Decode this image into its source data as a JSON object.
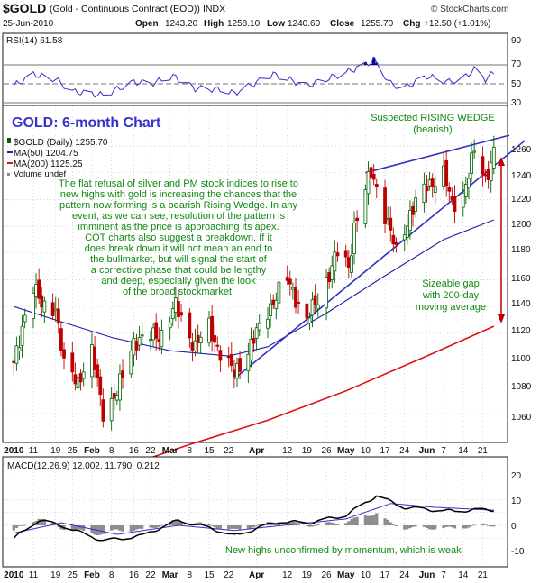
{
  "header": {
    "symbol": "$GOLD",
    "description": "(Gold - Continuous Contract (EOD))",
    "exchange": "INDX",
    "watermark": "© StockCharts.com",
    "date": "25-Jun-2010",
    "quote": {
      "open_label": "Open",
      "open": "1243.20",
      "high_label": "High",
      "high": "1258.10",
      "low_label": "Low",
      "low": "1240.60",
      "close_label": "Close",
      "close": "1255.70",
      "chg_label": "Chg",
      "chg": "+12.50 (+1.01%)"
    }
  },
  "rsi": {
    "label": "RSI(14) 61.58",
    "ticks": [
      "90",
      "70",
      "50",
      "30"
    ]
  },
  "price": {
    "big_title": "GOLD: 6-month Chart",
    "legend": {
      "series_label": "$GOLD (Daily) 1255.70",
      "ma50_label": "MA(50) 1204.75",
      "ma200_label": "MA(200) 1125.25",
      "volume_label": "Volume undef"
    },
    "wedge_note_1": "Suspected RISING WEDGE",
    "wedge_note_2": "(bearish)",
    "commentary": [
      "The flat refusal of silver and PM stock indices to rise to",
      "new highs with gold is increasing the chances that the",
      "pattern now forming is a bearish Rising Wedge. In any",
      "event, as we can see, resolution of the pattern is",
      "imminent as the price is approaching its apex.",
      "COT charts also suggest a breakdown. If it",
      "does break down it will not mean an end to",
      "the bullmarket, but will signal the start of",
      "a corrective phase that could be lengthy",
      "and deep, especially given the look",
      "of the broad stockmarket."
    ],
    "gap_note": [
      "Sizeable gap",
      "with 200-day",
      "moving average"
    ],
    "y_ticks": [
      "1260",
      "1240",
      "1220",
      "1200",
      "1180",
      "1160",
      "1140",
      "1120",
      "1100",
      "1080",
      "1060"
    ]
  },
  "x_axis": {
    "labels": [
      "2010",
      "11",
      "19",
      "25",
      "Feb",
      "8",
      "16",
      "22",
      "Mar",
      "8",
      "15",
      "22",
      "Apr",
      "12",
      "19",
      "26",
      "May",
      "10",
      "17",
      "24",
      "Jun",
      "7",
      "14",
      "21"
    ]
  },
  "macd": {
    "label": "MACD(12,26,9) 12.002, 11.790, 0.212",
    "ticks": [
      "20",
      "10",
      "0",
      "-10"
    ],
    "note": "New highs unconfirmed by momentum, which is weak"
  },
  "colors": {
    "frame": "#1a1a1a",
    "rsi_line": "#3030cc",
    "rsi_fill": "#000080",
    "price_up": "#006000",
    "price_down": "#c00000",
    "ma50": "#2020a8",
    "ma200": "#dd1010",
    "wedge": "#3030c0",
    "title_blue": "#3333cc",
    "note_green": "#108a10",
    "gap_arrow": "#c00000",
    "macd_line": "#000000",
    "signal_line": "#3030cc",
    "hist": "#8c8c8c"
  },
  "chart_data": {
    "type": "candlestick",
    "title": "GOLD: 6-month Chart",
    "period": "Jan 2010 - 25 Jun 2010 (daily)",
    "ylim": [
      1040,
      1270
    ],
    "price_path": [
      {
        "date": "2010-01-04",
        "close": 1095
      },
      {
        "date": "2010-01-08",
        "close": 1135
      },
      {
        "date": "2010-01-11",
        "close": 1155
      },
      {
        "date": "2010-01-14",
        "close": 1140
      },
      {
        "date": "2010-01-19",
        "close": 1140
      },
      {
        "date": "2010-01-22",
        "close": 1095
      },
      {
        "date": "2010-01-27",
        "close": 1085
      },
      {
        "date": "2010-02-01",
        "close": 1105
      },
      {
        "date": "2010-02-05",
        "close": 1062
      },
      {
        "date": "2010-02-10",
        "close": 1075
      },
      {
        "date": "2010-02-16",
        "close": 1115
      },
      {
        "date": "2010-02-19",
        "close": 1115
      },
      {
        "date": "2010-02-26",
        "close": 1120
      },
      {
        "date": "2010-03-03",
        "close": 1140
      },
      {
        "date": "2010-03-10",
        "close": 1110
      },
      {
        "date": "2010-03-15",
        "close": 1125
      },
      {
        "date": "2010-03-19",
        "close": 1105
      },
      {
        "date": "2010-03-24",
        "close": 1090
      },
      {
        "date": "2010-03-31",
        "close": 1115
      },
      {
        "date": "2010-04-07",
        "close": 1145
      },
      {
        "date": "2010-04-12",
        "close": 1160
      },
      {
        "date": "2010-04-19",
        "close": 1130
      },
      {
        "date": "2010-04-23",
        "close": 1145
      },
      {
        "date": "2010-04-30",
        "close": 1180
      },
      {
        "date": "2010-05-04",
        "close": 1170
      },
      {
        "date": "2010-05-06",
        "close": 1200
      },
      {
        "date": "2010-05-12",
        "close": 1240
      },
      {
        "date": "2010-05-14",
        "close": 1230
      },
      {
        "date": "2010-05-19",
        "close": 1195
      },
      {
        "date": "2010-05-21",
        "close": 1180
      },
      {
        "date": "2010-05-26",
        "close": 1210
      },
      {
        "date": "2010-06-01",
        "close": 1230
      },
      {
        "date": "2010-06-07",
        "close": 1240
      },
      {
        "date": "2010-06-10",
        "close": 1215
      },
      {
        "date": "2010-06-14",
        "close": 1225
      },
      {
        "date": "2010-06-18",
        "close": 1255
      },
      {
        "date": "2010-06-22",
        "close": 1235
      },
      {
        "date": "2010-06-25",
        "close": 1255.7
      }
    ],
    "ma50_path": [
      {
        "date": "2010-01-04",
        "value": 1140
      },
      {
        "date": "2010-01-19",
        "value": 1130
      },
      {
        "date": "2010-02-08",
        "value": 1117
      },
      {
        "date": "2010-03-01",
        "value": 1107
      },
      {
        "date": "2010-03-22",
        "value": 1103
      },
      {
        "date": "2010-04-05",
        "value": 1110
      },
      {
        "date": "2010-04-26",
        "value": 1135
      },
      {
        "date": "2010-05-17",
        "value": 1163
      },
      {
        "date": "2010-06-07",
        "value": 1190
      },
      {
        "date": "2010-06-25",
        "value": 1204.75
      }
    ],
    "ma200_path": [
      {
        "date": "2010-01-04",
        "value": 1000
      },
      {
        "date": "2010-02-08",
        "value": 1017
      },
      {
        "date": "2010-03-08",
        "value": 1037
      },
      {
        "date": "2010-04-05",
        "value": 1055
      },
      {
        "date": "2010-05-03",
        "value": 1077
      },
      {
        "date": "2010-06-01",
        "value": 1103
      },
      {
        "date": "2010-06-25",
        "value": 1125.25
      }
    ],
    "wedge_lines": [
      {
        "name": "upper",
        "start": {
          "date": "2010-05-10",
          "value": 1240
        },
        "end": {
          "date": "2010-06-25",
          "value": 1265
        }
      },
      {
        "name": "lower",
        "start": {
          "date": "2010-03-24",
          "value": 1086
        },
        "end": {
          "date": "2010-06-25",
          "value": 1245
        }
      }
    ],
    "rsi_ylim": [
      10,
      100
    ],
    "rsi_path": [
      {
        "date": "2010-01-04",
        "value": 48
      },
      {
        "date": "2010-01-11",
        "value": 60
      },
      {
        "date": "2010-01-19",
        "value": 55
      },
      {
        "date": "2010-01-25",
        "value": 42
      },
      {
        "date": "2010-02-05",
        "value": 38
      },
      {
        "date": "2010-02-16",
        "value": 52
      },
      {
        "date": "2010-02-22",
        "value": 50
      },
      {
        "date": "2010-03-02",
        "value": 58
      },
      {
        "date": "2010-03-10",
        "value": 45
      },
      {
        "date": "2010-03-19",
        "value": 44
      },
      {
        "date": "2010-03-24",
        "value": 40
      },
      {
        "date": "2010-04-07",
        "value": 60
      },
      {
        "date": "2010-04-19",
        "value": 48
      },
      {
        "date": "2010-04-26",
        "value": 55
      },
      {
        "date": "2010-05-03",
        "value": 62
      },
      {
        "date": "2010-05-10",
        "value": 70
      },
      {
        "date": "2010-05-13",
        "value": 75
      },
      {
        "date": "2010-05-19",
        "value": 50
      },
      {
        "date": "2010-05-24",
        "value": 46
      },
      {
        "date": "2010-06-01",
        "value": 58
      },
      {
        "date": "2010-06-09",
        "value": 52
      },
      {
        "date": "2010-06-14",
        "value": 56
      },
      {
        "date": "2010-06-18",
        "value": 65
      },
      {
        "date": "2010-06-22",
        "value": 55
      },
      {
        "date": "2010-06-25",
        "value": 61.58
      }
    ],
    "macd_ylim": [
      -16,
      28
    ],
    "macd_path": [
      {
        "date": "2010-01-04",
        "value": -10
      },
      {
        "date": "2010-01-13",
        "value": 4
      },
      {
        "date": "2010-01-21",
        "value": 0
      },
      {
        "date": "2010-02-05",
        "value": -12
      },
      {
        "date": "2010-02-19",
        "value": -8
      },
      {
        "date": "2010-03-04",
        "value": 4
      },
      {
        "date": "2010-03-15",
        "value": -2
      },
      {
        "date": "2010-03-24",
        "value": -8
      },
      {
        "date": "2010-04-09",
        "value": 3
      },
      {
        "date": "2010-04-20",
        "value": 2
      },
      {
        "date": "2010-05-03",
        "value": 8
      },
      {
        "date": "2010-05-14",
        "value": 23
      },
      {
        "date": "2010-05-24",
        "value": 14
      },
      {
        "date": "2010-06-03",
        "value": 12
      },
      {
        "date": "2010-06-11",
        "value": 11
      },
      {
        "date": "2010-06-18",
        "value": 12
      },
      {
        "date": "2010-06-25",
        "value": 12.002
      }
    ],
    "signal_path": [
      {
        "date": "2010-01-04",
        "value": -6
      },
      {
        "date": "2010-01-21",
        "value": 2
      },
      {
        "date": "2010-02-10",
        "value": -7
      },
      {
        "date": "2010-03-04",
        "value": 0
      },
      {
        "date": "2010-03-24",
        "value": -4
      },
      {
        "date": "2010-04-15",
        "value": 1
      },
      {
        "date": "2010-05-03",
        "value": 5
      },
      {
        "date": "2010-05-19",
        "value": 17
      },
      {
        "date": "2010-06-04",
        "value": 14
      },
      {
        "date": "2010-06-25",
        "value": 11.79
      }
    ],
    "macd_histogram_last": 0.212,
    "annotations": [
      "Suspected RISING WEDGE (bearish)",
      "Sizeable gap with 200-day moving average",
      "New highs unconfirmed by momentum, which is weak"
    ]
  }
}
